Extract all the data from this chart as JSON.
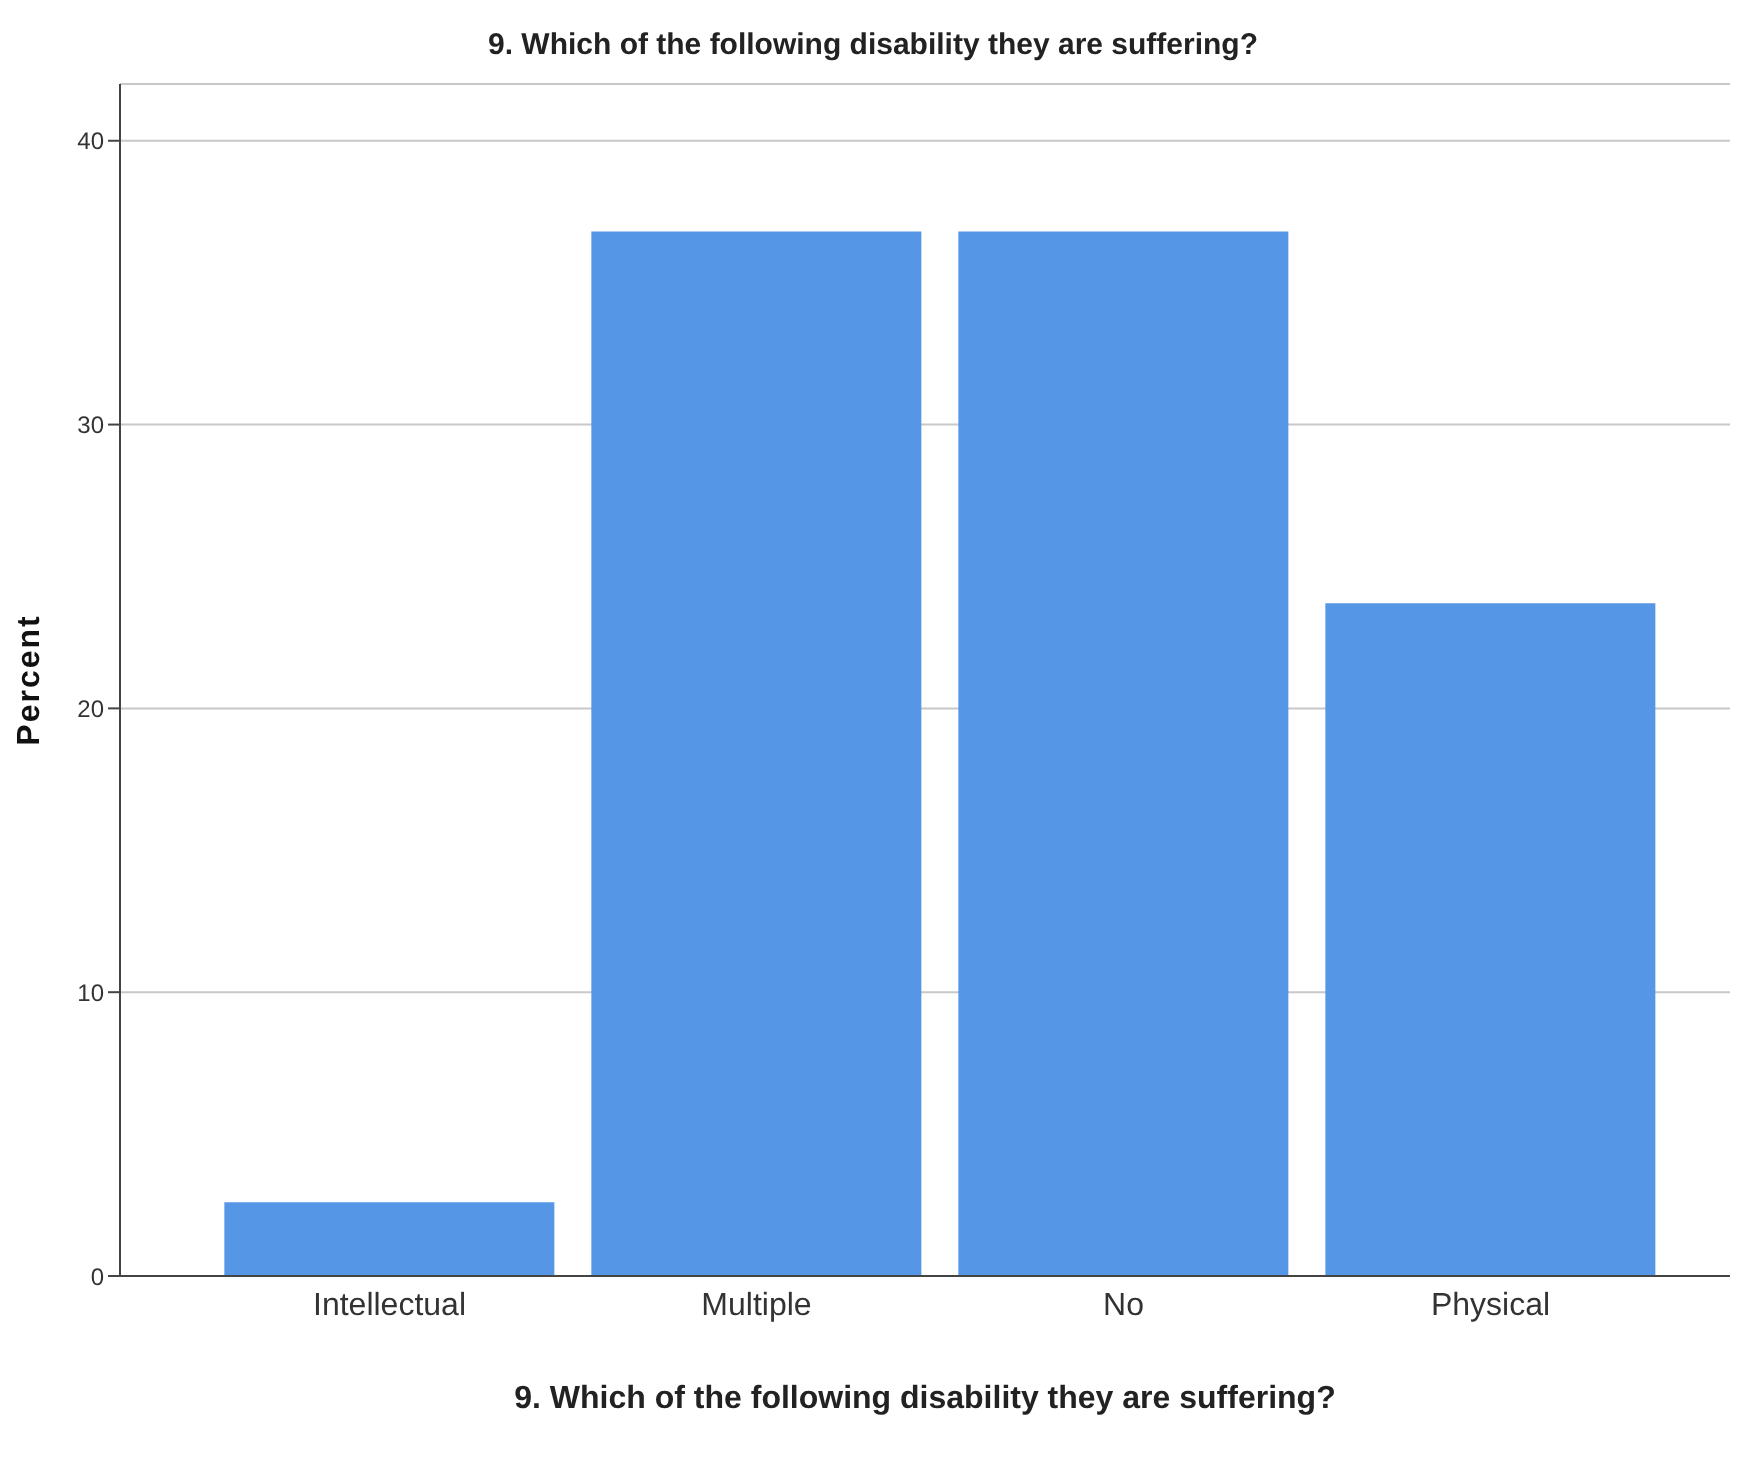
{
  "chart_data": {
    "type": "bar",
    "title": "9. Which of the following disability they are suffering?",
    "xlabel": "9. Which of the following disability they are suffering?",
    "ylabel": "Percent",
    "categories": [
      "Intellectual",
      "Multiple",
      "No",
      "Physical"
    ],
    "values": [
      2.6,
      36.8,
      36.8,
      23.7
    ],
    "color": "#5596e6",
    "ylim": [
      0,
      42
    ],
    "yticks": [
      0,
      10,
      20,
      30,
      40
    ],
    "grid": "y"
  }
}
